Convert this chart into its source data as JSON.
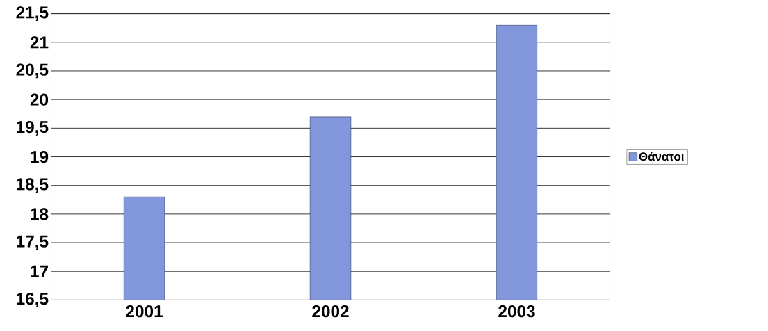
{
  "chart_data": {
    "type": "bar",
    "categories": [
      "2001",
      "2002",
      "2003"
    ],
    "series": [
      {
        "name": "Θάνατοι",
        "color": "#8296dc",
        "values": [
          18.3,
          19.7,
          21.3
        ]
      }
    ],
    "ylim": [
      16.5,
      21.5
    ],
    "yticks": [
      {
        "value": 16.5,
        "label": "16,5"
      },
      {
        "value": 17,
        "label": "17"
      },
      {
        "value": 17.5,
        "label": "17,5"
      },
      {
        "value": 18,
        "label": "18"
      },
      {
        "value": 18.5,
        "label": "18,5"
      },
      {
        "value": 19,
        "label": "19"
      },
      {
        "value": 19.5,
        "label": "19,5"
      },
      {
        "value": 20,
        "label": "20"
      },
      {
        "value": 20.5,
        "label": "20,5"
      },
      {
        "value": 21,
        "label": "21"
      },
      {
        "value": 21.5,
        "label": "21,5"
      }
    ],
    "grid": "y",
    "legend": "right"
  }
}
